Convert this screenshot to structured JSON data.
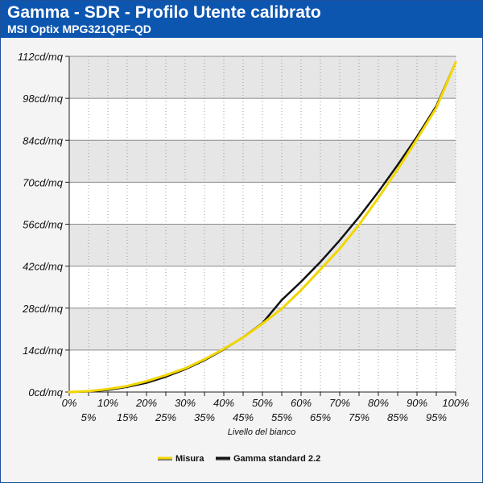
{
  "chart_data": {
    "type": "line",
    "title": "Gamma - SDR - Profilo Utente calibrato",
    "subtitle": "MSI Optix MPG321QRF-QD",
    "xlabel": "Livello del bianco",
    "ylabel": "",
    "x_ticks": [
      "0%",
      "5%",
      "10%",
      "15%",
      "20%",
      "25%",
      "30%",
      "35%",
      "40%",
      "45%",
      "50%",
      "55%",
      "60%",
      "65%",
      "70%",
      "75%",
      "80%",
      "85%",
      "90%",
      "95%",
      "100%"
    ],
    "y_ticks": [
      "0cd/mq",
      "14cd/mq",
      "28cd/mq",
      "42cd/mq",
      "56cd/mq",
      "70cd/mq",
      "84cd/mq",
      "98cd/mq",
      "112cd/mq"
    ],
    "xlim": [
      0,
      100
    ],
    "ylim": [
      0,
      112
    ],
    "x": [
      0,
      5,
      10,
      15,
      20,
      25,
      30,
      35,
      40,
      45,
      50,
      55,
      60,
      65,
      70,
      75,
      80,
      85,
      90,
      95,
      100
    ],
    "series": [
      {
        "name": "Misura",
        "color": "#f2d600",
        "values": [
          0,
          0.3,
          1.0,
          2.0,
          3.6,
          5.6,
          7.9,
          10.9,
          14.4,
          18.2,
          22.8,
          27.8,
          34.0,
          40.9,
          47.8,
          55.8,
          64.8,
          74.3,
          84.4,
          94.8,
          110.0
        ]
      },
      {
        "name": "Gamma standard 2.2",
        "color": "#111111",
        "values": [
          0,
          0.15,
          0.7,
          1.7,
          3.1,
          5.1,
          7.6,
          10.6,
          14.2,
          18.3,
          23.0,
          30.7,
          36.8,
          43.4,
          50.6,
          58.4,
          66.8,
          75.8,
          85.2,
          95.4,
          110.0
        ]
      }
    ],
    "legend_position": "bottom",
    "grid": true
  }
}
